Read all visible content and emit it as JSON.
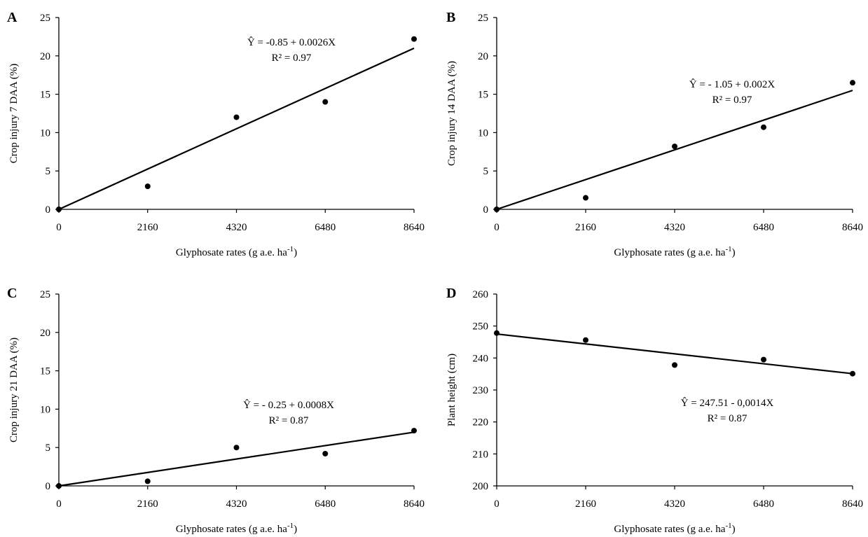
{
  "figure": {
    "x_axis_title_main": "Glyphosate rates (g a.e. ha",
    "x_axis_title_sup": "-1",
    "x_axis_title_close": ")"
  },
  "chart_data": [
    {
      "type": "scatter",
      "panel_label": "A",
      "ylabel": "Crop injury 7 DAA (%)",
      "x_ticks": [
        "0",
        "2160",
        "4320",
        "6480",
        "8640"
      ],
      "y_ticks": [
        "0",
        "5",
        "10",
        "15",
        "20",
        "25"
      ],
      "xlim": [
        0,
        8640
      ],
      "ylim": [
        0,
        25
      ],
      "x": [
        0,
        2160,
        4320,
        6480,
        8640
      ],
      "y": [
        0,
        3.0,
        12.0,
        14.0,
        22.2
      ],
      "fit": {
        "intercept": -0.85,
        "slope": 0.0026,
        "display_line": [
          [
            0,
            0
          ],
          [
            8640,
            21
          ]
        ]
      },
      "equation": "Ŷ = -0.85 + 0.0026X",
      "r2": "R² = 0.97"
    },
    {
      "type": "scatter",
      "panel_label": "B",
      "ylabel": "Crop injury 14 DAA (%)",
      "x_ticks": [
        "0",
        "2160",
        "4320",
        "6480",
        "8640"
      ],
      "y_ticks": [
        "0",
        "5",
        "10",
        "15",
        "20",
        "25"
      ],
      "xlim": [
        0,
        8640
      ],
      "ylim": [
        0,
        25
      ],
      "x": [
        0,
        2160,
        4320,
        6480,
        8640
      ],
      "y": [
        0,
        1.5,
        8.2,
        10.7,
        16.5
      ],
      "fit": {
        "intercept": -1.05,
        "slope": 0.002,
        "display_line": [
          [
            0,
            0
          ],
          [
            8640,
            15.5
          ]
        ]
      },
      "equation": "Ŷ = - 1.05 + 0.002X",
      "r2": "R² = 0.97"
    },
    {
      "type": "scatter",
      "panel_label": "C",
      "ylabel": "Crop injury 21 DAA (%)",
      "x_ticks": [
        "0",
        "2160",
        "4320",
        "6480",
        "8640"
      ],
      "y_ticks": [
        "0",
        "5",
        "10",
        "15",
        "20",
        "25"
      ],
      "xlim": [
        0,
        8640
      ],
      "ylim": [
        0,
        25
      ],
      "x": [
        0,
        2160,
        4320,
        6480,
        8640
      ],
      "y": [
        0,
        0.6,
        5.0,
        4.2,
        7.2
      ],
      "fit": {
        "intercept": -0.25,
        "slope": 0.0008,
        "display_line": [
          [
            0,
            0
          ],
          [
            8640,
            7.0
          ]
        ]
      },
      "equation": "Ŷ = - 0.25 + 0.0008X",
      "r2": "R² = 0.87"
    },
    {
      "type": "scatter",
      "panel_label": "D",
      "ylabel": "Plant height (cm)",
      "x_ticks": [
        "0",
        "2160",
        "4320",
        "6480",
        "8640"
      ],
      "y_ticks": [
        "200",
        "210",
        "220",
        "230",
        "240",
        "250",
        "260"
      ],
      "xlim": [
        0,
        8640
      ],
      "ylim": [
        200,
        260
      ],
      "x": [
        0,
        2160,
        4320,
        6480,
        8640
      ],
      "y": [
        247.8,
        245.6,
        237.8,
        239.5,
        235.1
      ],
      "fit": {
        "intercept": 247.51,
        "slope": -0.0014,
        "display_line": [
          [
            0,
            247.5
          ],
          [
            8640,
            235.1
          ]
        ]
      },
      "equation": "Ŷ = 247.51 - 0,0014X",
      "r2": "R² = 0.87"
    }
  ]
}
